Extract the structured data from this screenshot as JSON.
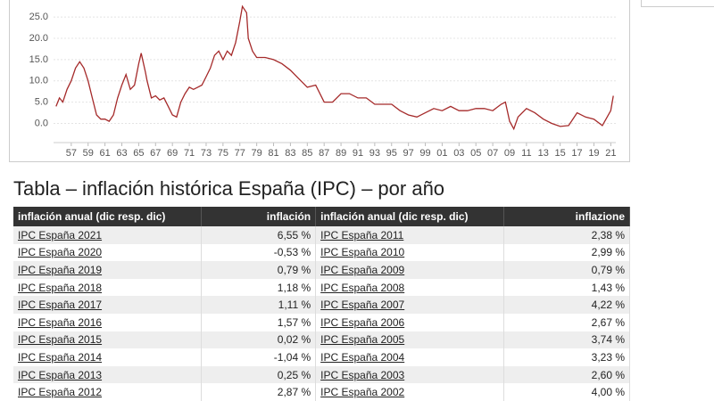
{
  "chart_data": {
    "type": "line",
    "color": "#a52a2a",
    "grid": true,
    "xlim": [
      1954.9,
      2021.6
    ],
    "ylim": [
      -4.5,
      29
    ],
    "yticks": [
      {
        "value": 0,
        "label": "0.0"
      },
      {
        "value": 5,
        "label": "5.0"
      },
      {
        "value": 10,
        "label": "10.0"
      },
      {
        "value": 15,
        "label": "15.0"
      },
      {
        "value": 20,
        "label": "20.0"
      },
      {
        "value": 25,
        "label": "25.0"
      }
    ],
    "xticks": [
      {
        "value": 1957,
        "label": "57"
      },
      {
        "value": 1959,
        "label": "59"
      },
      {
        "value": 1961,
        "label": "61"
      },
      {
        "value": 1963,
        "label": "63"
      },
      {
        "value": 1965,
        "label": "65"
      },
      {
        "value": 1967,
        "label": "67"
      },
      {
        "value": 1969,
        "label": "69"
      },
      {
        "value": 1971,
        "label": "71"
      },
      {
        "value": 1973,
        "label": "73"
      },
      {
        "value": 1975,
        "label": "75"
      },
      {
        "value": 1977,
        "label": "77"
      },
      {
        "value": 1979,
        "label": "79"
      },
      {
        "value": 1981,
        "label": "81"
      },
      {
        "value": 1983,
        "label": "83"
      },
      {
        "value": 1985,
        "label": "85"
      },
      {
        "value": 1987,
        "label": "87"
      },
      {
        "value": 1989,
        "label": "89"
      },
      {
        "value": 1991,
        "label": "91"
      },
      {
        "value": 1993,
        "label": "93"
      },
      {
        "value": 1995,
        "label": "95"
      },
      {
        "value": 1997,
        "label": "97"
      },
      {
        "value": 1999,
        "label": "99"
      },
      {
        "value": 2001,
        "label": "01"
      },
      {
        "value": 2003,
        "label": "03"
      },
      {
        "value": 2005,
        "label": "05"
      },
      {
        "value": 2007,
        "label": "07"
      },
      {
        "value": 2009,
        "label": "09"
      },
      {
        "value": 2011,
        "label": "11"
      },
      {
        "value": 2013,
        "label": "13"
      },
      {
        "value": 2015,
        "label": "15"
      },
      {
        "value": 2017,
        "label": "17"
      },
      {
        "value": 2019,
        "label": "19"
      },
      {
        "value": 2021,
        "label": "21"
      }
    ],
    "x": [
      1955.2,
      1955.6,
      1956,
      1956.5,
      1957,
      1957.5,
      1958,
      1958.5,
      1959,
      1959.5,
      1960,
      1960.5,
      1961,
      1961.5,
      1962,
      1962.5,
      1963,
      1963.5,
      1964,
      1964.5,
      1965,
      1965.3,
      1965.8,
      1966,
      1966.5,
      1967,
      1967.5,
      1968,
      1968.5,
      1969,
      1969.5,
      1970,
      1970.5,
      1971,
      1971.5,
      1972,
      1972.5,
      1973,
      1973.5,
      1974,
      1974.5,
      1975,
      1975.5,
      1976,
      1976.5,
      1977,
      1977.3,
      1977.8,
      1978,
      1978.5,
      1979,
      1980,
      1981,
      1982,
      1983,
      1984,
      1985,
      1986,
      1987,
      1988,
      1989,
      1990,
      1991,
      1992,
      1993,
      1994,
      1995,
      1996,
      1997,
      1998,
      1999,
      2000,
      2001,
      2002,
      2003,
      2004,
      2005,
      2006,
      2007,
      2008,
      2008.5,
      2009,
      2009.5,
      2010,
      2011,
      2012,
      2013,
      2014,
      2015,
      2016,
      2017,
      2018,
      2019,
      2020,
      2021,
      2021.3
    ],
    "values": [
      4,
      6,
      5,
      8,
      10,
      13,
      14.5,
      13,
      10,
      6,
      2,
      1,
      1,
      0.5,
      2,
      6,
      9,
      11.5,
      8,
      9,
      14,
      16.5,
      12,
      10,
      6,
      6.5,
      5.5,
      6,
      4,
      2,
      1.5,
      5,
      7,
      8.5,
      8,
      8.5,
      9,
      11,
      13,
      16,
      17,
      15,
      17,
      16,
      19,
      24,
      27.5,
      26,
      20,
      17,
      15.5,
      15.5,
      15,
      14,
      12.5,
      10.5,
      8.5,
      9,
      5,
      5,
      7,
      7,
      6,
      6,
      4.5,
      4.5,
      4.5,
      3,
      2,
      1.5,
      2.5,
      3.5,
      3,
      4,
      3,
      3,
      3.5,
      3.5,
      3,
      4.5,
      5,
      0.5,
      -1.3,
      1.5,
      3.5,
      2.5,
      1,
      0,
      -0.7,
      -0.5,
      2.5,
      1.5,
      1,
      -0.5,
      3,
      6.5
    ]
  },
  "table": {
    "title": "Tabla – inflación histórica España (IPC) – por año",
    "headers": [
      "inflación anual (dic resp. dic)",
      "inflación",
      "inflación anual (dic resp. dic)",
      "inflazione"
    ],
    "rows": [
      [
        "IPC España 2021",
        "6,55 %",
        "IPC España 2011",
        "2,38 %"
      ],
      [
        "IPC España 2020",
        "-0,53 %",
        "IPC España 2010",
        "2,99 %"
      ],
      [
        "IPC España 2019",
        "0,79 %",
        "IPC España 2009",
        "0,79 %"
      ],
      [
        "IPC España 2018",
        "1,18 %",
        "IPC España 2008",
        "1,43 %"
      ],
      [
        "IPC España 2017",
        "1,11 %",
        "IPC España 2007",
        "4,22 %"
      ],
      [
        "IPC España 2016",
        "1,57 %",
        "IPC España 2006",
        "2,67 %"
      ],
      [
        "IPC España 2015",
        "0,02 %",
        "IPC España 2005",
        "3,74 %"
      ],
      [
        "IPC España 2014",
        "-1,04 %",
        "IPC España 2004",
        "3,23 %"
      ],
      [
        "IPC España 2013",
        "0,25 %",
        "IPC España 2003",
        "2,60 %"
      ],
      [
        "IPC España 2012",
        "2,87 %",
        "IPC España 2002",
        "4,00 %"
      ]
    ]
  }
}
